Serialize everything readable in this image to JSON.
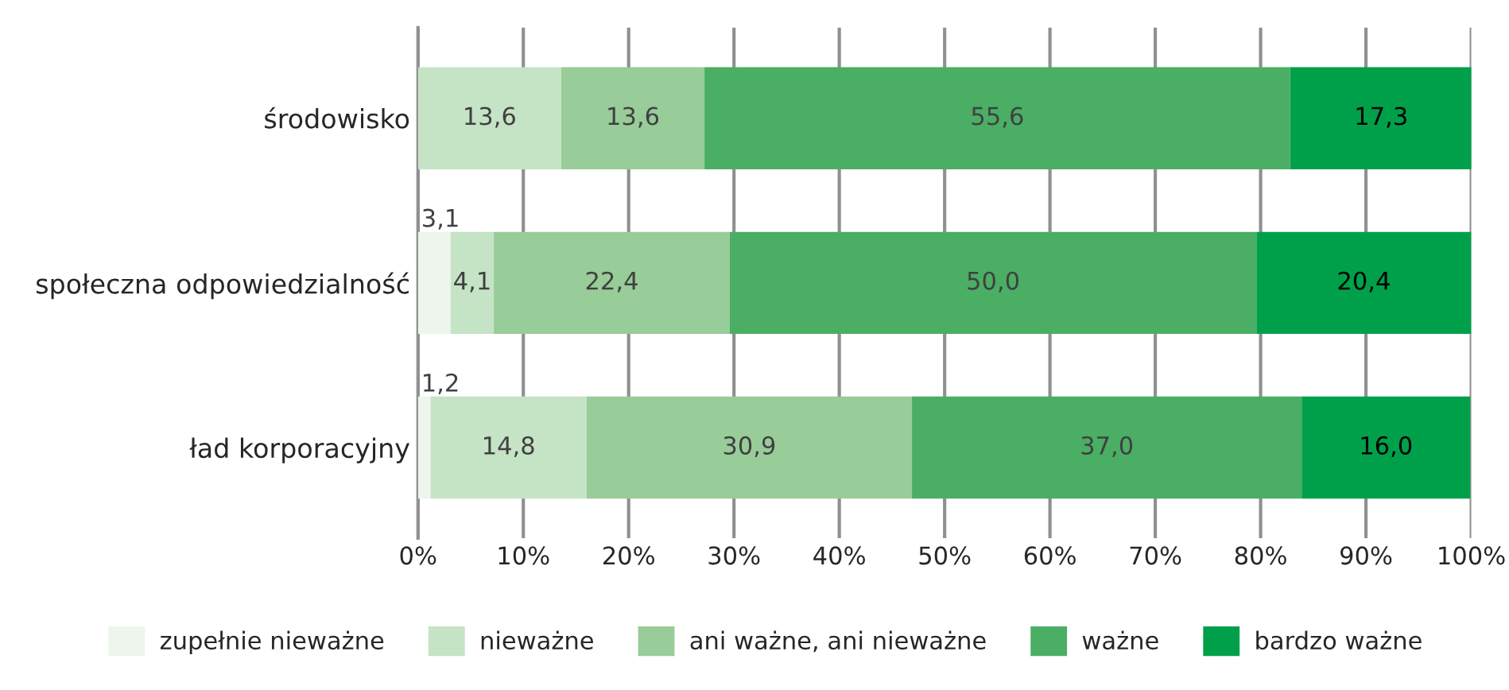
{
  "chart_data": {
    "type": "bar",
    "orientation": "horizontal",
    "stacked": true,
    "categories": [
      "środowisko",
      "społeczna odpowiedzialność",
      "ład korporacyjny"
    ],
    "series": [
      {
        "name": "zupełnie nieważne",
        "color": "#edf5ec",
        "values": [
          null,
          3.1,
          1.2
        ],
        "value_labels": [
          null,
          "3,1",
          "1,2"
        ]
      },
      {
        "name": "nieważne",
        "color": "#c5e3c5",
        "values": [
          13.6,
          4.1,
          14.8
        ],
        "value_labels": [
          "13,6",
          "4,1",
          "14,8"
        ]
      },
      {
        "name": "ani ważne, ani nieważne",
        "color": "#98cc98",
        "values": [
          13.6,
          22.4,
          30.9
        ],
        "value_labels": [
          "13,6",
          "22,4",
          "30,9"
        ]
      },
      {
        "name": "ważne",
        "color": "#4aae64",
        "values": [
          55.6,
          50.0,
          37.0
        ],
        "value_labels": [
          "55,6",
          "50,0",
          "37,0"
        ]
      },
      {
        "name": "bardzo ważne",
        "color": "#00a04a",
        "values": [
          17.3,
          20.4,
          16.0
        ],
        "value_labels": [
          "17,3",
          "20,4",
          "16,0"
        ]
      }
    ],
    "xlim": [
      0,
      100
    ],
    "xticks": [
      {
        "value": 0,
        "label": "0%"
      },
      {
        "value": 10,
        "label": "10%"
      },
      {
        "value": 20,
        "label": "20%"
      },
      {
        "value": 30,
        "label": "30%"
      },
      {
        "value": 40,
        "label": "40%"
      },
      {
        "value": 50,
        "label": "50%"
      },
      {
        "value": 60,
        "label": "60%"
      },
      {
        "value": 70,
        "label": "70%"
      },
      {
        "value": 80,
        "label": "80%"
      },
      {
        "value": 90,
        "label": "90%"
      },
      {
        "value": 100,
        "label": "100%"
      }
    ],
    "grid": "x",
    "legend": "bottom"
  }
}
